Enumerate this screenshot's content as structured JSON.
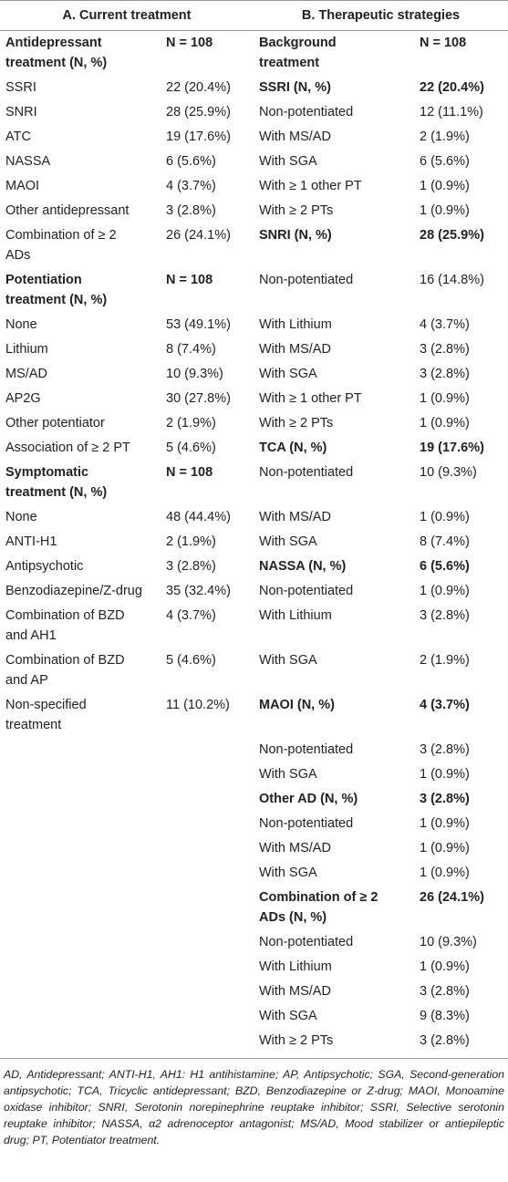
{
  "table": {
    "headers": [
      "A. Current treatment",
      "B. Therapeutic strategies"
    ],
    "rows": [
      {
        "left": [
          "Antidepressant treatment (N, %)",
          "N = 108"
        ],
        "right": [
          "Background treatment",
          "N = 108"
        ],
        "bold_left": true,
        "bold_right": true
      },
      {
        "left": [
          "SSRI",
          "22 (20.4%)"
        ],
        "right": [
          "SSRI (N, %)",
          "22 (20.4%)"
        ],
        "bold_right": true
      },
      {
        "left": [
          "SNRI",
          "28 (25.9%)"
        ],
        "right": [
          "Non-potentiated",
          "12 (11.1%)"
        ]
      },
      {
        "left": [
          "ATC",
          "19 (17.6%)"
        ],
        "right": [
          "With MS/AD",
          "2 (1.9%)"
        ]
      },
      {
        "left": [
          "NASSA",
          "6 (5.6%)"
        ],
        "right": [
          "With SGA",
          "6 (5.6%)"
        ]
      },
      {
        "left": [
          "MAOI",
          "4 (3.7%)"
        ],
        "right": [
          "With ≥ 1 other PT",
          "1 (0.9%)"
        ]
      },
      {
        "left": [
          "Other antidepressant",
          "3 (2.8%)"
        ],
        "right": [
          "With ≥ 2 PTs",
          "1 (0.9%)"
        ]
      },
      {
        "left": [
          "Combination of ≥ 2 ADs",
          "26 (24.1%)"
        ],
        "right": [
          "SNRI (N, %)",
          "28 (25.9%)"
        ],
        "bold_right": true
      },
      {
        "left": [
          "Potentiation treatment (N, %)",
          "N = 108"
        ],
        "right": [
          "Non-potentiated",
          "16 (14.8%)"
        ],
        "bold_left": true
      },
      {
        "left": [
          "None",
          "53 (49.1%)"
        ],
        "right": [
          "With Lithium",
          "4 (3.7%)"
        ]
      },
      {
        "left": [
          "Lithium",
          "8 (7.4%)"
        ],
        "right": [
          "With MS/AD",
          "3 (2.8%)"
        ]
      },
      {
        "left": [
          "MS/AD",
          "10 (9.3%)"
        ],
        "right": [
          "With SGA",
          "3 (2.8%)"
        ]
      },
      {
        "left": [
          "AP2G",
          "30 (27.8%)"
        ],
        "right": [
          "With ≥ 1 other PT",
          "1 (0.9%)"
        ]
      },
      {
        "left": [
          "Other potentiator",
          "2 (1.9%)"
        ],
        "right": [
          "With ≥ 2 PTs",
          "1 (0.9%)"
        ]
      },
      {
        "left": [
          "Association of ≥ 2 PT",
          "5 (4.6%)"
        ],
        "right": [
          "TCA (N, %)",
          "19 (17.6%)"
        ],
        "bold_right": true
      },
      {
        "left": [
          "Symptomatic treatment (N, %)",
          "N = 108"
        ],
        "right": [
          "Non-potentiated",
          "10 (9.3%)"
        ],
        "bold_left": true
      },
      {
        "left": [
          "None",
          "48 (44.4%)"
        ],
        "right": [
          "With MS/AD",
          "1 (0.9%)"
        ]
      },
      {
        "left": [
          "ANTI-H1",
          "2 (1.9%)"
        ],
        "right": [
          "With SGA",
          "8 (7.4%)"
        ]
      },
      {
        "left": [
          "Antipsychotic",
          "3 (2.8%)"
        ],
        "right": [
          "NASSA (N, %)",
          "6 (5.6%)"
        ],
        "bold_right": true
      },
      {
        "left": [
          "Benzodiazepine/Z-drug",
          "35 (32.4%)"
        ],
        "right": [
          "Non-potentiated",
          "1 (0.9%)"
        ]
      },
      {
        "left": [
          "Combination of BZD and AH1",
          "4 (3.7%)"
        ],
        "right": [
          "With Lithium",
          "3 (2.8%)"
        ]
      },
      {
        "left": [
          "Combination of BZD and AP",
          "5 (4.6%)"
        ],
        "right": [
          "With SGA",
          "2 (1.9%)"
        ]
      },
      {
        "left": [
          "Non-specified treatment",
          "11 (10.2%)"
        ],
        "right": [
          "MAOI (N, %)",
          "4 (3.7%)"
        ],
        "bold_right": true
      },
      {
        "right": [
          "Non-potentiated",
          "3 (2.8%)"
        ]
      },
      {
        "right": [
          "With SGA",
          "1 (0.9%)"
        ]
      },
      {
        "right": [
          "Other AD (N, %)",
          "3 (2.8%)"
        ],
        "bold_right": true
      },
      {
        "right": [
          "Non-potentiated",
          "1 (0.9%)"
        ]
      },
      {
        "right": [
          "With MS/AD",
          "1 (0.9%)"
        ]
      },
      {
        "right": [
          "With SGA",
          "1 (0.9%)"
        ]
      },
      {
        "right": [
          "Combination of ≥ 2 ADs (N, %)",
          "26 (24.1%)"
        ],
        "bold_right": true
      },
      {
        "right": [
          "Non-potentiated",
          "10 (9.3%)"
        ]
      },
      {
        "right": [
          "With Lithium",
          "1 (0.9%)"
        ]
      },
      {
        "right": [
          "With MS/AD",
          "3 (2.8%)"
        ]
      },
      {
        "right": [
          "With SGA",
          "9 (8.3%)"
        ]
      },
      {
        "right": [
          "With ≥ 2 PTs",
          "3 (2.8%)"
        ]
      }
    ],
    "footnote": "AD, Antidepressant; ANTI-H1, AH1: H1 antihistamine; AP, Antipsychotic; SGA, Second-generation antipsychotic; TCA, Tricyclic antidepressant; BZD, Benzodiazepine or Z-drug; MAOI, Monoamine oxidase inhibitor; SNRI, Serotonin norepinephrine reuptake inhibitor; SSRI, Selective serotonin reuptake inhibitor; NASSA, α2 adrenoceptor antagonist; MS/AD, Mood stabilizer or antiepileptic drug; PT, Potentiator treatment."
  }
}
